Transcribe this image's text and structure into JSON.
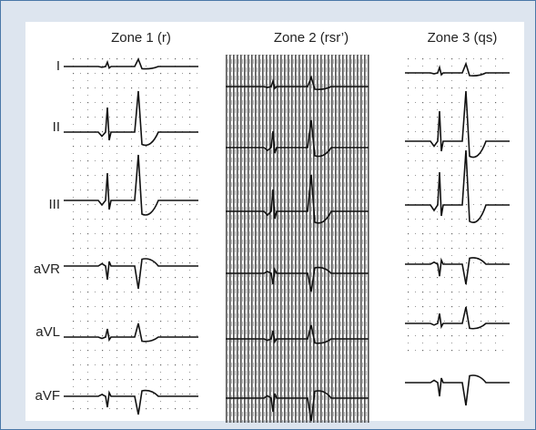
{
  "zones": [
    {
      "title": "Zone 1 (r)"
    },
    {
      "title": "Zone 2 (rsr’)"
    },
    {
      "title": "Zone 3 (qs)"
    }
  ],
  "leads": [
    "I",
    "II",
    "III",
    "aVR",
    "aVL",
    "aVF"
  ]
}
